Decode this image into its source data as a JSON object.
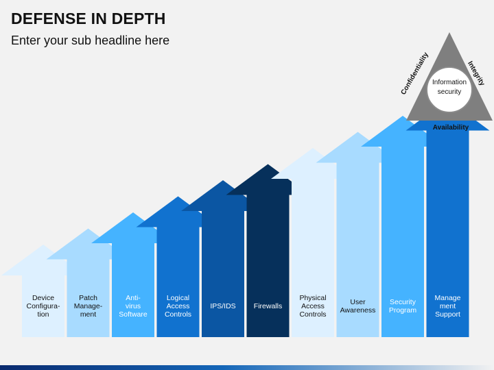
{
  "title": "DEFENSE IN DEPTH",
  "subtitle": "Enter your sub headline here",
  "triangle": {
    "left_label": "Confidentiality",
    "right_label": "Integrity",
    "bottom_label": "Availability",
    "center_label": "Information\nsecurity",
    "color": "#7f7f7f"
  },
  "arrows": [
    {
      "label": "Device\nConfigura-\ntion",
      "level": 1,
      "color": "#ddf0ff",
      "text_color": "#111111"
    },
    {
      "label": "Patch\nManage-\nment",
      "level": 2,
      "color": "#a8dbff",
      "text_color": "#111111"
    },
    {
      "label": "Anti-\nvirus\nSoftware",
      "level": 3,
      "color": "#45b3ff",
      "text_color": "#ffffff"
    },
    {
      "label": "Logical\nAccess\nControls",
      "level": 4,
      "color": "#1172cf",
      "text_color": "#ffffff"
    },
    {
      "label": "IPS/IDS",
      "level": 5,
      "color": "#0b56a3",
      "text_color": "#ffffff"
    },
    {
      "label": "Firewalls",
      "level": 6,
      "color": "#06305b",
      "text_color": "#ffffff"
    },
    {
      "label": "Physical\nAccess\nControls",
      "level": 7,
      "color": "#ddf0ff",
      "text_color": "#111111"
    },
    {
      "label": "User\nAwareness",
      "level": 8,
      "color": "#a8dbff",
      "text_color": "#111111"
    },
    {
      "label": "Security\nProgram",
      "level": 9,
      "color": "#45b3ff",
      "text_color": "#ffffff"
    },
    {
      "label": "Manage\nment\nSupport",
      "level": 10,
      "color": "#1172cf",
      "text_color": "#ffffff"
    }
  ]
}
